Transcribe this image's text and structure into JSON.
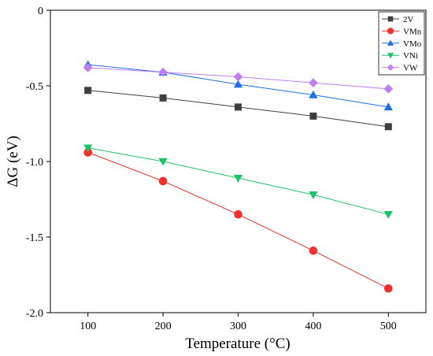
{
  "chart_data": {
    "type": "line",
    "xlabel": "Temperature (°C)",
    "ylabel": "ΔG (eV)",
    "x": [
      100,
      200,
      300,
      400,
      500
    ],
    "xlim": [
      50,
      550
    ],
    "ylim": [
      -2.0,
      0
    ],
    "xticks": [
      "100",
      "200",
      "300",
      "400",
      "500"
    ],
    "yticks": [
      "0",
      "-0.5",
      "-1.0",
      "-1.5",
      "-2.0"
    ],
    "legend_position": "top-right",
    "grid": false,
    "series": [
      {
        "name": "2V",
        "marker": "square",
        "color": "#3f3f3f",
        "values": [
          -0.53,
          -0.58,
          -0.64,
          -0.7,
          -0.77
        ]
      },
      {
        "name": "VMn",
        "marker": "circle",
        "color": "#f0302c",
        "values": [
          -0.94,
          -1.13,
          -1.35,
          -1.59,
          -1.84
        ]
      },
      {
        "name": "VMo",
        "marker": "triangle-up",
        "color": "#1f6fe0",
        "values": [
          -0.36,
          -0.41,
          -0.49,
          -0.56,
          -0.64
        ]
      },
      {
        "name": "VNi",
        "marker": "triangle-down",
        "color": "#1ec26b",
        "values": [
          -0.91,
          -1.0,
          -1.11,
          -1.22,
          -1.35
        ]
      },
      {
        "name": "VW",
        "marker": "diamond",
        "color": "#c07ef0",
        "values": [
          -0.38,
          -0.41,
          -0.44,
          -0.48,
          -0.52
        ]
      }
    ]
  }
}
